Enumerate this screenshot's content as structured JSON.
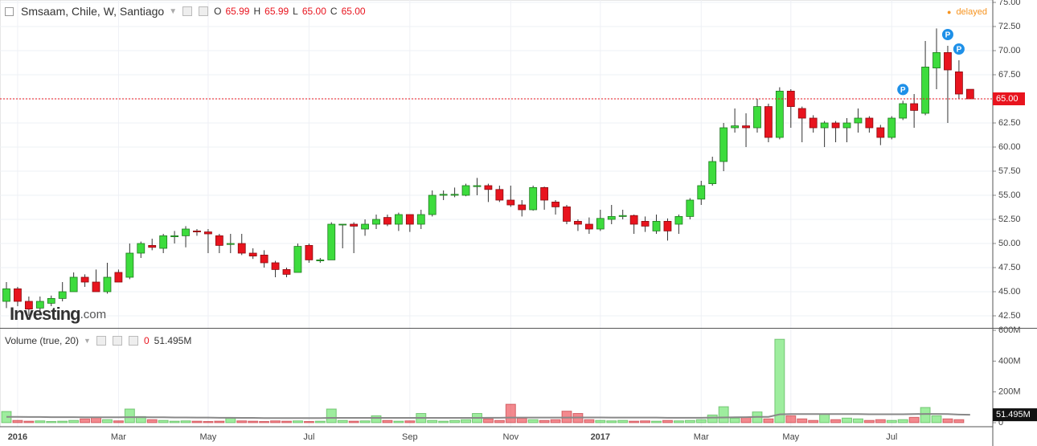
{
  "chart_data": [
    {
      "type": "candlestick",
      "title": "Smsaam, Chile, W, Santiago",
      "readout": [
        {
          "name": "O",
          "value": 65.99
        },
        {
          "name": "H",
          "value": 65.99
        },
        {
          "name": "L",
          "value": {
            "value": 65,
            "label": "65.00"
          }
        },
        {
          "name": "C",
          "value": {
            "value": 65,
            "label": "65.00"
          }
        }
      ],
      "status": "delayed",
      "logo": {
        "name": "Investing",
        "suffix": ".com"
      },
      "categories": [
        null,
        "2016",
        null,
        null,
        null,
        null,
        null,
        null,
        null,
        null,
        "Mar",
        null,
        null,
        null,
        null,
        null,
        null,
        null,
        "May",
        null,
        null,
        null,
        null,
        null,
        null,
        null,
        null,
        "Jul",
        null,
        null,
        null,
        null,
        null,
        null,
        null,
        null,
        "Sep",
        null,
        null,
        null,
        null,
        null,
        null,
        null,
        null,
        "Nov",
        null,
        null,
        null,
        null,
        null,
        null,
        null,
        "2017",
        null,
        null,
        null,
        null,
        null,
        null,
        null,
        null,
        "Mar",
        null,
        null,
        null,
        null,
        null,
        null,
        null,
        "May",
        null,
        null,
        null,
        null,
        null,
        null,
        null,
        null,
        "Jul",
        null,
        null,
        null,
        null,
        null,
        null,
        null
      ],
      "open": [
        44.0,
        45.3,
        44.0,
        43.3,
        43.8,
        44.3,
        45.0,
        46.5,
        46.0,
        45.0,
        47.0,
        46.5,
        49.0,
        49.8,
        49.5,
        50.7,
        50.8,
        51.3,
        51.2,
        50.8,
        49.9,
        50.0,
        49.0,
        48.8,
        48.0,
        47.3,
        47.0,
        49.8,
        48.2,
        48.3,
        52.0,
        52.0,
        51.5,
        52.0,
        52.7,
        52.0,
        53.0,
        52.0,
        53.0,
        55.0,
        55.0,
        55.0,
        55.9,
        56.0,
        55.6,
        54.5,
        54.0,
        53.5,
        55.8,
        54.3,
        53.8,
        52.3,
        52.0,
        51.5,
        52.5,
        52.8,
        52.9,
        52.3,
        51.3,
        52.3,
        52.0,
        52.8,
        54.6,
        56.2,
        58.5,
        62.0,
        62.2,
        62.0,
        64.2,
        61.0,
        65.8,
        64.0,
        63.0,
        62.0,
        62.5,
        62.0,
        62.5,
        63.0,
        62.0,
        61.0,
        63.0,
        64.5,
        63.5,
        68.2,
        69.8,
        67.8,
        65.99
      ],
      "high": [
        46.0,
        45.5,
        44.5,
        44.5,
        44.6,
        46.0,
        47.0,
        46.8,
        47.3,
        48.0,
        47.3,
        50.0,
        50.2,
        50.5,
        51.0,
        51.3,
        51.8,
        51.5,
        51.5,
        51.0,
        51.0,
        51.0,
        49.5,
        49.3,
        48.2,
        47.5,
        50.0,
        50.0,
        48.5,
        52.2,
        52.0,
        52.2,
        52.5,
        53.0,
        53.0,
        53.2,
        53.0,
        53.5,
        55.5,
        55.5,
        55.8,
        56.2,
        56.8,
        56.2,
        56.0,
        56.0,
        54.5,
        56.0,
        55.9,
        54.5,
        54.0,
        52.5,
        52.7,
        53.5,
        54.0,
        53.5,
        53.0,
        52.8,
        53.0,
        52.6,
        53.0,
        54.7,
        56.5,
        59.0,
        62.5,
        64.0,
        63.5,
        65.0,
        64.5,
        66.2,
        66.0,
        64.2,
        63.3,
        62.7,
        62.7,
        63.0,
        64.0,
        63.2,
        62.3,
        63.2,
        64.8,
        65.5,
        71.0,
        72.3,
        70.5,
        69.0,
        65.99
      ],
      "low": [
        43.3,
        43.5,
        42.5,
        42.8,
        43.5,
        44.0,
        45.0,
        45.5,
        45.0,
        44.8,
        46.0,
        46.3,
        48.5,
        49.3,
        49.0,
        50.0,
        49.6,
        50.8,
        49.0,
        49.0,
        49.0,
        48.8,
        48.4,
        47.5,
        46.5,
        46.5,
        47.0,
        48.0,
        48.0,
        48.3,
        49.5,
        49.0,
        50.8,
        51.5,
        51.8,
        51.3,
        51.2,
        51.5,
        52.8,
        54.5,
        54.8,
        54.9,
        55.0,
        54.3,
        54.3,
        53.8,
        52.8,
        53.4,
        53.5,
        53.0,
        52.0,
        51.3,
        51.0,
        51.3,
        52.0,
        52.5,
        51.0,
        51.2,
        51.0,
        50.3,
        51.0,
        52.5,
        54.0,
        56.0,
        57.5,
        61.5,
        60.0,
        61.5,
        60.5,
        60.8,
        62.0,
        60.5,
        61.5,
        60.0,
        60.5,
        60.5,
        61.5,
        61.5,
        60.2,
        60.8,
        62.8,
        62.0,
        63.3,
        66.0,
        62.5,
        65.0,
        65.0
      ],
      "close": [
        45.3,
        44.0,
        43.2,
        44.0,
        44.3,
        45.0,
        46.5,
        46.0,
        45.0,
        46.5,
        46.0,
        49.0,
        50.0,
        49.6,
        50.8,
        50.8,
        51.5,
        51.2,
        51.0,
        49.8,
        50.0,
        49.0,
        48.7,
        48.0,
        47.3,
        46.8,
        49.7,
        48.3,
        48.3,
        52.0,
        52.0,
        51.8,
        52.0,
        52.5,
        52.0,
        53.0,
        52.0,
        53.0,
        55.0,
        55.1,
        55.1,
        56.0,
        56.0,
        55.6,
        54.5,
        54.0,
        53.5,
        55.8,
        54.5,
        53.8,
        52.3,
        52.0,
        51.5,
        52.6,
        52.8,
        52.9,
        52.0,
        51.8,
        52.3,
        51.3,
        52.8,
        54.5,
        56.0,
        58.5,
        62.0,
        62.2,
        62.0,
        64.2,
        61.0,
        65.8,
        64.2,
        63.0,
        62.0,
        62.5,
        62.0,
        62.5,
        63.0,
        62.0,
        61.0,
        63.0,
        64.5,
        63.8,
        68.3,
        69.8,
        68.0,
        65.5,
        65.0
      ],
      "up_color": "#3ddc3d",
      "down_color": "#e8141e",
      "ylim": [
        41.25,
        75.25
      ],
      "yticks": [
        {
          "value": 42.5,
          "label": "42.50"
        },
        {
          "value": 45,
          "label": "45.00"
        },
        {
          "value": 47.5,
          "label": "47.50"
        },
        {
          "value": 50,
          "label": "50.00"
        },
        {
          "value": 52.5,
          "label": "52.50"
        },
        {
          "value": 55,
          "label": "55.00"
        },
        {
          "value": 57.5,
          "label": "57.50"
        },
        {
          "value": 60,
          "label": "60.00"
        },
        {
          "value": 62.5,
          "label": "62.50"
        },
        {
          "value": 65,
          "label": "65.00"
        },
        {
          "value": 67.5,
          "label": "67.50"
        },
        {
          "value": 70,
          "label": "70.00"
        },
        {
          "value": 72.5,
          "label": "72.50"
        },
        {
          "value": 75,
          "label": "75.00"
        }
      ],
      "last_price": {
        "value": 65,
        "label": "65.00"
      },
      "events": [
        {
          "label": "P",
          "at": 80
        },
        {
          "label": "P",
          "at": 84
        },
        {
          "label": "P",
          "at": 85
        }
      ],
      "grid": true
    },
    {
      "type": "bar",
      "title": "Volume (true, 20)",
      "readout": [
        0,
        {
          "value": 51495000,
          "label": "51.495M"
        }
      ],
      "values": [
        73000000,
        15000000,
        10000000,
        12000000,
        8000000,
        10000000,
        15000000,
        25000000,
        35000000,
        20000000,
        12000000,
        89000000,
        40000000,
        20000000,
        15000000,
        10000000,
        12000000,
        10000000,
        8000000,
        10000000,
        30000000,
        12000000,
        10000000,
        8000000,
        12000000,
        10000000,
        12000000,
        8000000,
        10000000,
        89000000,
        15000000,
        10000000,
        12000000,
        45000000,
        15000000,
        10000000,
        12000000,
        60000000,
        15000000,
        10000000,
        15000000,
        20000000,
        60000000,
        25000000,
        15000000,
        120000000,
        30000000,
        20000000,
        15000000,
        20000000,
        75000000,
        60000000,
        20000000,
        15000000,
        12000000,
        15000000,
        10000000,
        12000000,
        10000000,
        15000000,
        12000000,
        15000000,
        20000000,
        50000000,
        104000000,
        30000000,
        35000000,
        70000000,
        25000000,
        542000000,
        45000000,
        25000000,
        15000000,
        55000000,
        20000000,
        30000000,
        25000000,
        15000000,
        20000000,
        15000000,
        20000000,
        35000000,
        99000000,
        45000000,
        25000000,
        20000000,
        0
      ],
      "ma": {
        "color": "#888888",
        "values": [
          38000000,
          38000000,
          37000000,
          37000000,
          36000000,
          36000000,
          36000000,
          35000000,
          35000000,
          35000000,
          35000000,
          36000000,
          36000000,
          35000000,
          35000000,
          34000000,
          34000000,
          33000000,
          33000000,
          32000000,
          32000000,
          31000000,
          31000000,
          30000000,
          30000000,
          30000000,
          30000000,
          30000000,
          30000000,
          31000000,
          31000000,
          31000000,
          31000000,
          31000000,
          31000000,
          31000000,
          31000000,
          31000000,
          31000000,
          31000000,
          31000000,
          31000000,
          31000000,
          32000000,
          32000000,
          33000000,
          33000000,
          33000000,
          33000000,
          33000000,
          33000000,
          34000000,
          34000000,
          34000000,
          33000000,
          33000000,
          33000000,
          33000000,
          33000000,
          32000000,
          32000000,
          32000000,
          32000000,
          33000000,
          34000000,
          35000000,
          36000000,
          38000000,
          38000000,
          54000000,
          56000000,
          56000000,
          56000000,
          56000000,
          56000000,
          56000000,
          56000000,
          55000000,
          55000000,
          55000000,
          55000000,
          56000000,
          57000000,
          57000000,
          56000000,
          53000000,
          51495000
        ]
      },
      "ylim": [
        0,
        620000000
      ],
      "yticks": [
        0,
        {
          "value": 200000000,
          "label": "200M"
        },
        {
          "value": 400000000,
          "label": "400M"
        },
        {
          "value": 600000000,
          "label": "600M"
        }
      ]
    }
  ]
}
